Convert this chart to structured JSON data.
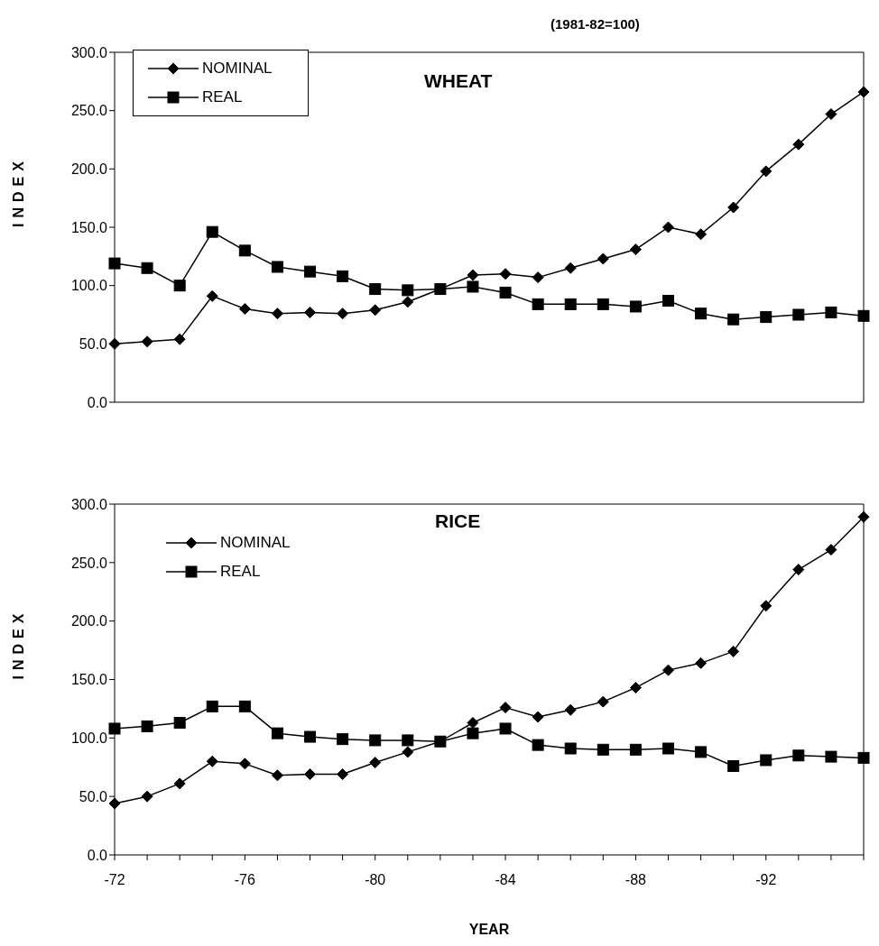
{
  "chart_data": [
    {
      "type": "line",
      "title": "WHEAT",
      "subtitle": "(1981-82=100)",
      "ylabel": "INDEX",
      "categories": [
        "-72",
        null,
        null,
        null,
        "-76",
        null,
        null,
        null,
        "-80",
        null,
        null,
        null,
        "-84",
        null,
        null,
        null,
        "-88",
        null,
        null,
        null,
        "-92",
        null,
        null,
        null
      ],
      "series": [
        {
          "name": "NOMINAL",
          "color": "#000000",
          "marker": "diamond",
          "values": [
            50,
            52,
            54,
            91,
            80,
            76,
            77,
            76,
            79,
            86,
            97,
            109,
            110,
            107,
            115,
            123,
            131,
            150,
            144,
            167,
            198,
            221,
            247,
            266
          ]
        },
        {
          "name": "REAL",
          "color": "#000000",
          "marker": "square",
          "values": [
            119,
            115,
            100,
            146,
            130,
            116,
            112,
            108,
            97,
            96,
            97,
            99,
            94,
            84,
            84,
            84,
            82,
            87,
            76,
            71,
            73,
            75,
            77,
            74
          ]
        }
      ],
      "ylim": [
        0,
        300
      ],
      "yticks": [
        {
          "value": 0,
          "label": "0.0"
        },
        {
          "value": 50,
          "label": "50.0"
        },
        {
          "value": 100,
          "label": "100.0"
        },
        {
          "value": 150,
          "label": "150.0"
        },
        {
          "value": 200,
          "label": "200.0"
        },
        {
          "value": 250,
          "label": "250.0"
        },
        {
          "value": 300,
          "label": "300.0"
        }
      ],
      "tick_labels": "y",
      "legend": "top left",
      "grid": false,
      "line_style": "solid"
    },
    {
      "type": "line",
      "title": "RICE",
      "xlabel": "YEAR",
      "ylabel": "INDEX",
      "categories": [
        "-72",
        null,
        null,
        null,
        "-76",
        null,
        null,
        null,
        "-80",
        null,
        null,
        null,
        "-84",
        null,
        null,
        null,
        "-88",
        null,
        null,
        null,
        "-92",
        null,
        null,
        null
      ],
      "series": [
        {
          "name": "NOMINAL",
          "color": "#000000",
          "marker": "diamond",
          "values": [
            44,
            50,
            61,
            80,
            78,
            68,
            69,
            69,
            79,
            88,
            97,
            113,
            126,
            118,
            124,
            131,
            143,
            158,
            164,
            174,
            213,
            244,
            261,
            289
          ]
        },
        {
          "name": "REAL",
          "color": "#000000",
          "marker": "square",
          "values": [
            108,
            110,
            113,
            127,
            127,
            104,
            101,
            99,
            98,
            98,
            97,
            104,
            108,
            94,
            91,
            90,
            90,
            91,
            88,
            76,
            81,
            85,
            84,
            83
          ]
        }
      ],
      "ylim": [
        0,
        300
      ],
      "yticks": [
        {
          "value": 0,
          "label": "0.0"
        },
        {
          "value": 50,
          "label": "50.0"
        },
        {
          "value": 100,
          "label": "100.0"
        },
        {
          "value": 150,
          "label": "150.0"
        },
        {
          "value": 200,
          "label": "200.0"
        },
        {
          "value": 250,
          "label": "250.0"
        },
        {
          "value": 300,
          "label": "300.0"
        }
      ],
      "legend": "top left",
      "grid": false,
      "line_style": "solid"
    }
  ]
}
